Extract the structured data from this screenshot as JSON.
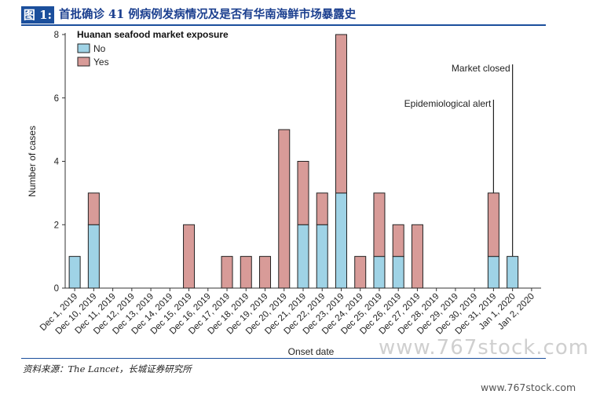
{
  "header": {
    "figure_tag": "图 1:",
    "title": "首批确诊 41 例病例发病情况及是否有华南海鲜市场暴露史"
  },
  "source": "资料来源：The Lancet，长城证券研究所",
  "watermark": {
    "large": "www.767stock.com",
    "small": "www.767stock.com"
  },
  "chart_data": {
    "type": "bar",
    "stacked": true,
    "xlabel": "Onset date",
    "ylabel": "Number of cases",
    "ylim": [
      0,
      8
    ],
    "yticks": [
      0,
      2,
      4,
      6,
      8
    ],
    "grid": false,
    "legend": {
      "title": "Huanan seafood market exposure",
      "position": "top-left"
    },
    "categories": [
      "Dec 1, 2019",
      "Dec 10, 2019",
      "Dec 11, 2019",
      "Dec 12, 2019",
      "Dec 13, 2019",
      "Dec 14, 2019",
      "Dec 15, 2019",
      "Dec 16, 2019",
      "Dec 17, 2019",
      "Dec 18, 2019",
      "Dec 19, 2019",
      "Dec 20, 2019",
      "Dec 21, 2019",
      "Dec 22, 2019",
      "Dec 23, 2019",
      "Dec 24, 2019",
      "Dec 25, 2019",
      "Dec 26, 2019",
      "Dec 27, 2019",
      "Dec 28, 2019",
      "Dec 29, 2019",
      "Dec 30, 2019",
      "Dec 31, 2019",
      "Jan 1, 2020",
      "Jan 2, 2020"
    ],
    "series": [
      {
        "name": "No",
        "color": "#9fd3e6",
        "values": [
          1,
          2,
          0,
          0,
          0,
          0,
          0,
          0,
          0,
          0,
          0,
          0,
          2,
          2,
          3,
          0,
          1,
          1,
          0,
          0,
          0,
          0,
          1,
          1,
          0
        ]
      },
      {
        "name": "Yes",
        "color": "#d89b98",
        "values": [
          0,
          1,
          0,
          0,
          0,
          0,
          2,
          0,
          1,
          1,
          1,
          5,
          2,
          1,
          5,
          1,
          2,
          1,
          2,
          0,
          0,
          0,
          2,
          0,
          0
        ]
      }
    ],
    "annotations": [
      {
        "text": "Epidemiological alert",
        "category": "Dec 31, 2019"
      },
      {
        "text": "Market closed",
        "category": "Jan 1, 2020"
      }
    ]
  }
}
